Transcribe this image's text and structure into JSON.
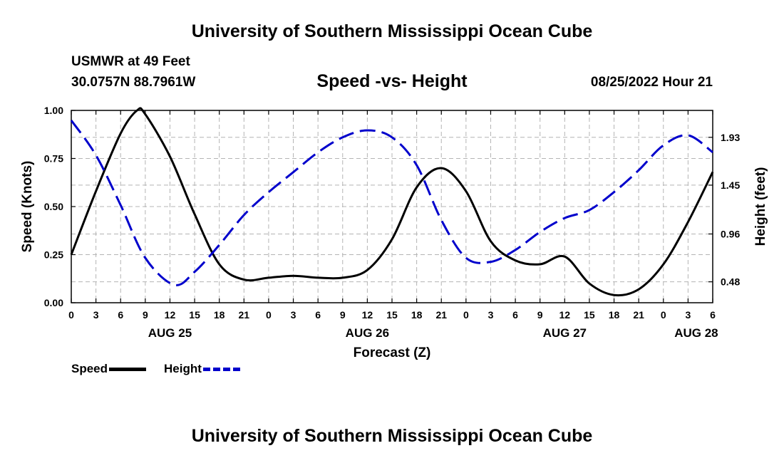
{
  "page": {
    "title_top": "University of Southern Mississippi Ocean Cube",
    "title_bottom": "University of Southern Mississippi Ocean Cube",
    "station": "USMWR at 49 Feet",
    "coords": "30.0757N  88.7961W",
    "subtitle": "Speed -vs- Height",
    "datetime": "08/25/2022 Hour 21"
  },
  "chart_data": {
    "type": "line",
    "title": "Speed -vs- Height",
    "xlabel": "Forecast (Z)",
    "ylabel": "Speed (Knots)",
    "y2label": "Height (feet)",
    "x_range_hours": [
      0,
      78
    ],
    "ylim": [
      0,
      1
    ],
    "y2lim": [
      0.27,
      2.2
    ],
    "grid": true,
    "x_ticks": [
      "0",
      "3",
      "6",
      "9",
      "12",
      "15",
      "18",
      "21",
      "0",
      "3",
      "6",
      "9",
      "12",
      "15",
      "18",
      "21",
      "0",
      "3",
      "6",
      "9",
      "12",
      "15",
      "18",
      "21",
      "0",
      "3",
      "6"
    ],
    "x_day_labels": [
      {
        "label": "AUG 25",
        "hour": 12
      },
      {
        "label": "AUG 26",
        "hour": 36
      },
      {
        "label": "AUG 27",
        "hour": 60
      },
      {
        "label": "AUG 28",
        "hour": 76
      }
    ],
    "y_ticks": [
      "0.00",
      "0.25",
      "0.50",
      "0.75",
      "1.00"
    ],
    "y2_ticks": [
      {
        "label": "0.48",
        "value": 0.48
      },
      {
        "label": "0.96",
        "value": 0.96
      },
      {
        "label": "1.45",
        "value": 1.45
      },
      {
        "label": "1.93",
        "value": 1.93
      }
    ],
    "series": [
      {
        "name": "Speed",
        "axis": "left",
        "color": "#000000",
        "dashed": false,
        "x": [
          0,
          3,
          6,
          8,
          9,
          12,
          15,
          18,
          21,
          24,
          27,
          30,
          33,
          36,
          39,
          42,
          45,
          48,
          51,
          54,
          57,
          60,
          63,
          66,
          69,
          72,
          75,
          78
        ],
        "y": [
          0.25,
          0.58,
          0.88,
          1.0,
          0.98,
          0.76,
          0.46,
          0.2,
          0.12,
          0.13,
          0.14,
          0.13,
          0.13,
          0.17,
          0.33,
          0.6,
          0.7,
          0.58,
          0.32,
          0.22,
          0.2,
          0.24,
          0.1,
          0.04,
          0.07,
          0.2,
          0.42,
          0.68
        ]
      },
      {
        "name": "Height",
        "axis": "right",
        "color": "#0000cc",
        "dashed": true,
        "x": [
          0,
          3,
          6,
          9,
          12.5,
          15,
          18,
          21,
          24,
          27,
          30,
          33,
          36,
          39,
          42,
          45,
          48,
          51,
          54,
          57,
          60,
          63,
          66,
          69,
          72,
          75,
          78
        ],
        "y": [
          2.1,
          1.75,
          1.25,
          0.72,
          0.45,
          0.58,
          0.85,
          1.15,
          1.38,
          1.58,
          1.78,
          1.93,
          2.0,
          1.93,
          1.65,
          1.1,
          0.72,
          0.68,
          0.8,
          0.98,
          1.12,
          1.2,
          1.38,
          1.6,
          1.85,
          1.95,
          1.78
        ]
      }
    ]
  }
}
